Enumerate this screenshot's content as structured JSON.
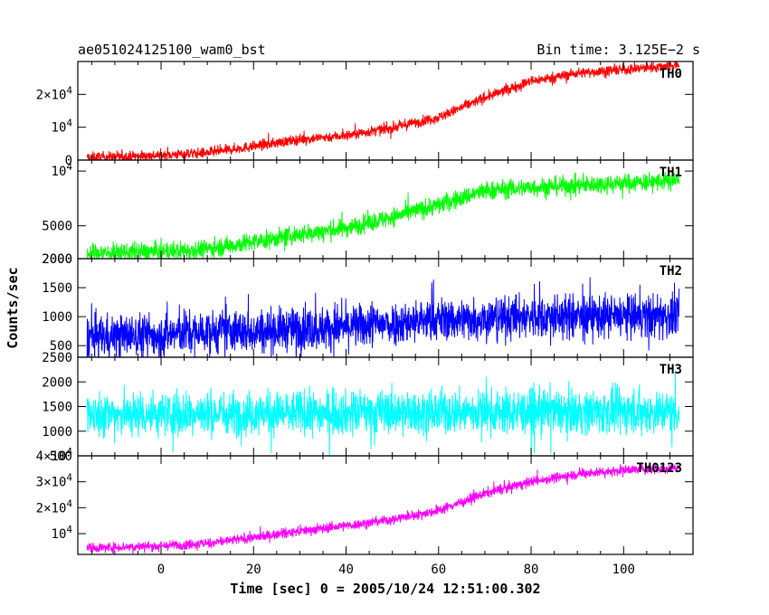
{
  "header": {
    "title": "ae051024125100_wam0_bst",
    "bin_time": "Bin time: 3.125E−2 s"
  },
  "chart_data": {
    "type": "line",
    "ylabel": "Counts/sec",
    "xlabel": "Time [sec] 0 = 2005/10/24 12:51:00.302",
    "xlim": [
      -18,
      115
    ],
    "xticks": [
      0,
      20,
      40,
      60,
      80,
      100
    ],
    "x_start": -16,
    "x_end": 112,
    "panels": [
      {
        "name": "TH0",
        "color": "#ff0000",
        "ylim": [
          0,
          30000
        ],
        "yticks": [
          {
            "value": 0,
            "label": "0"
          },
          {
            "value": 10000,
            "label": "10^4"
          },
          {
            "value": 20000,
            "label": "2×10^4"
          }
        ],
        "trend": [
          [
            -16,
            800
          ],
          [
            0,
            1500
          ],
          [
            10,
            2200
          ],
          [
            20,
            4200
          ],
          [
            30,
            6300
          ],
          [
            40,
            7500
          ],
          [
            50,
            9800
          ],
          [
            60,
            13000
          ],
          [
            70,
            19000
          ],
          [
            80,
            24000
          ],
          [
            90,
            26500
          ],
          [
            100,
            27500
          ],
          [
            112,
            29000
          ]
        ],
        "noise": 1500
      },
      {
        "name": "TH1",
        "color": "#00ff00",
        "ylim": [
          2000,
          11000
        ],
        "yticks": [
          {
            "value": 2000,
            "label": "2000"
          },
          {
            "value": 5000,
            "label": "5000"
          },
          {
            "value": 10000,
            "label": "10^4"
          }
        ],
        "trend": [
          [
            -16,
            2500
          ],
          [
            0,
            2650
          ],
          [
            10,
            2900
          ],
          [
            20,
            3500
          ],
          [
            30,
            4200
          ],
          [
            40,
            4800
          ],
          [
            50,
            5800
          ],
          [
            60,
            6900
          ],
          [
            70,
            8200
          ],
          [
            80,
            8500
          ],
          [
            90,
            8700
          ],
          [
            100,
            8900
          ],
          [
            112,
            9100
          ]
        ],
        "noise": 800
      },
      {
        "name": "TH2",
        "color": "#0000ff",
        "ylim": [
          300,
          2000
        ],
        "yticks": [
          {
            "value": 500,
            "label": "500"
          },
          {
            "value": 1000,
            "label": "1000"
          },
          {
            "value": 1500,
            "label": "1500"
          },
          {
            "value": 2000,
            "label": "2000"
          }
        ],
        "trend": [
          [
            -16,
            650
          ],
          [
            0,
            700
          ],
          [
            20,
            760
          ],
          [
            40,
            820
          ],
          [
            60,
            950
          ],
          [
            80,
            1000
          ],
          [
            100,
            1000
          ],
          [
            112,
            1000
          ]
        ],
        "noise": 350
      },
      {
        "name": "TH3",
        "color": "#00ffff",
        "ylim": [
          500,
          2500
        ],
        "yticks": [
          {
            "value": 500,
            "label": "500"
          },
          {
            "value": 1000,
            "label": "1000"
          },
          {
            "value": 1500,
            "label": "1500"
          },
          {
            "value": 2000,
            "label": "2000"
          },
          {
            "value": 2500,
            "label": "2500"
          }
        ],
        "trend": [
          [
            -16,
            1350
          ],
          [
            0,
            1350
          ],
          [
            50,
            1380
          ],
          [
            112,
            1400
          ]
        ],
        "noise": 420
      },
      {
        "name": "TH0123",
        "color": "#ff00ff",
        "ylim": [
          2000,
          40000
        ],
        "yticks": [
          {
            "value": 10000,
            "label": "10^4"
          },
          {
            "value": 20000,
            "label": "2×10^4"
          },
          {
            "value": 30000,
            "label": "3×10^4"
          },
          {
            "value": 40000,
            "label": "4×10^4"
          }
        ],
        "trend": [
          [
            -16,
            4500
          ],
          [
            0,
            5300
          ],
          [
            10,
            6300
          ],
          [
            20,
            8500
          ],
          [
            30,
            11000
          ],
          [
            40,
            13000
          ],
          [
            50,
            15500
          ],
          [
            60,
            19000
          ],
          [
            70,
            25500
          ],
          [
            80,
            30000
          ],
          [
            90,
            33000
          ],
          [
            100,
            34500
          ],
          [
            112,
            35500
          ]
        ],
        "noise": 1800
      }
    ]
  }
}
